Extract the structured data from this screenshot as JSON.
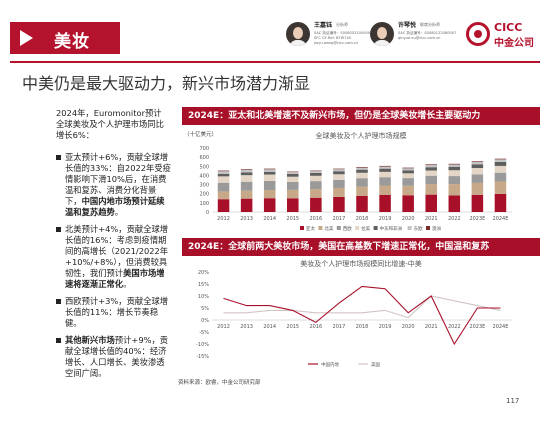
{
  "header": {
    "section_title": "美妆",
    "analysts": [
      {
        "name": "王嘉钰",
        "role": "分析师",
        "lines": [
          "SAC 执证编号：S0080521050008",
          "SFC CE Ref: BTW740",
          "jiayu.wang@cicc.com.cn"
        ]
      },
      {
        "name": "许琴悦",
        "role": "联席分析师",
        "lines": [
          "SAC 执证编号：S0080122080007",
          "qinyue.xu@cicc.com.cn"
        ]
      }
    ],
    "logo_en": "CICC",
    "logo_cn": "中金公司"
  },
  "subtitle": "中美仍是最大驱动力，新兴市场潜力渐显",
  "lead_text": "2024年，Euromonitor预计全球美妆及个人护理市场同比增长6%：",
  "bullets": [
    {
      "prefix": "亚太预计+6%，贡献全球增长值的33%：自2022年受疫情影响下滑10%后，在消费温和复苏、消费分化背景下，",
      "bold": "中国内地市场预计延续温和复苏趋势",
      "suffix": "。"
    },
    {
      "prefix": "北美预计+4%，贡献全球增长值的16%：考虑到疫情期间的高增长（2021/2022年+10%/+8%），但消费较具韧性，我们预计",
      "bold": "美国市场增速将逐渐正常化",
      "suffix": "。"
    },
    {
      "prefix": "西欧预计+3%，贡献全球增长值的11%：增长节奏稳健。",
      "bold": "",
      "suffix": ""
    },
    {
      "prefix": "",
      "bold": "其他新兴市场",
      "suffix": "预计+9%，贡献全球增长值的40%：经济增长、人口增长、美妆渗透空间广阔。"
    }
  ],
  "panel1_title": "2024E：亚太和北美增速不及新兴市场，但仍是全球美妆增长主要驱动力",
  "panel2_title": "2024E：全球前两大美妆市场，美国在高基数下增速正常化，中国温和复苏",
  "source": "资料来源：欧睿，中金公司研究部",
  "page_number": "117",
  "colors": {
    "brand": "#a8102a"
  },
  "chart_data": [
    {
      "type": "bar",
      "stacked": true,
      "title": "全球美妆及个人护理市场规模",
      "ylabel": "（十亿美元）",
      "categories": [
        "2012",
        "2013",
        "2014",
        "2015",
        "2016",
        "2017",
        "2018",
        "2019",
        "2020",
        "2021",
        "2022",
        "2023E",
        "2024E"
      ],
      "ylim": [
        0,
        700
      ],
      "yticks": [
        0,
        100,
        200,
        300,
        400,
        500,
        600,
        700
      ],
      "series": [
        {
          "name": "亚太",
          "color": "#a8102a",
          "values": [
            140,
            146,
            151,
            150,
            156,
            165,
            177,
            186,
            183,
            190,
            181,
            188,
            199
          ]
        },
        {
          "name": "北美",
          "color": "#c7a98a",
          "values": [
            85,
            87,
            90,
            92,
            95,
            98,
            101,
            104,
            104,
            115,
            124,
            130,
            135
          ]
        },
        {
          "name": "西欧",
          "color": "#9a9a9a",
          "values": [
            95,
            98,
            99,
            86,
            87,
            89,
            92,
            91,
            84,
            92,
            88,
            93,
            96
          ]
        },
        {
          "name": "拉美",
          "color": "#e3d6c6",
          "values": [
            70,
            72,
            70,
            58,
            58,
            61,
            59,
            58,
            52,
            57,
            64,
            70,
            74
          ]
        },
        {
          "name": "中东和非洲",
          "color": "#5e5e5e",
          "values": [
            28,
            29,
            30,
            30,
            31,
            33,
            34,
            35,
            33,
            36,
            38,
            41,
            44
          ]
        },
        {
          "name": "东欧",
          "color": "#c4c4c4",
          "values": [
            28,
            29,
            27,
            20,
            20,
            22,
            22,
            23,
            22,
            24,
            25,
            27,
            28
          ]
        },
        {
          "name": "澳洲",
          "color": "#7a2b2b",
          "values": [
            7,
            7,
            7,
            6,
            6,
            6,
            7,
            7,
            7,
            7,
            7,
            7,
            7
          ]
        }
      ]
    },
    {
      "type": "line",
      "title": "美妆及个人护理市场规模同比增速-中美",
      "x": [
        "2012",
        "2013",
        "2014",
        "2015",
        "2016",
        "2017",
        "2018",
        "2019",
        "2020",
        "2021",
        "2022",
        "2023E",
        "2024E"
      ],
      "ylim": [
        -15,
        20
      ],
      "yticks": [
        -15,
        -10,
        -5,
        0,
        5,
        10,
        15,
        20
      ],
      "yticklabels": [
        "-15%",
        "-10%",
        "-5%",
        "0%",
        "5%",
        "10%",
        "15%",
        "20%"
      ],
      "series": [
        {
          "name": "中国内地",
          "color": "#a8102a",
          "values": [
            9,
            6,
            6,
            4,
            -1,
            7,
            14,
            13,
            3,
            10,
            -10,
            5,
            5
          ]
        },
        {
          "name": "美国",
          "color": "#d3c4c4",
          "values": [
            3,
            3,
            4,
            4,
            3,
            3,
            3,
            4,
            1,
            10,
            8,
            6,
            4
          ]
        }
      ]
    }
  ]
}
